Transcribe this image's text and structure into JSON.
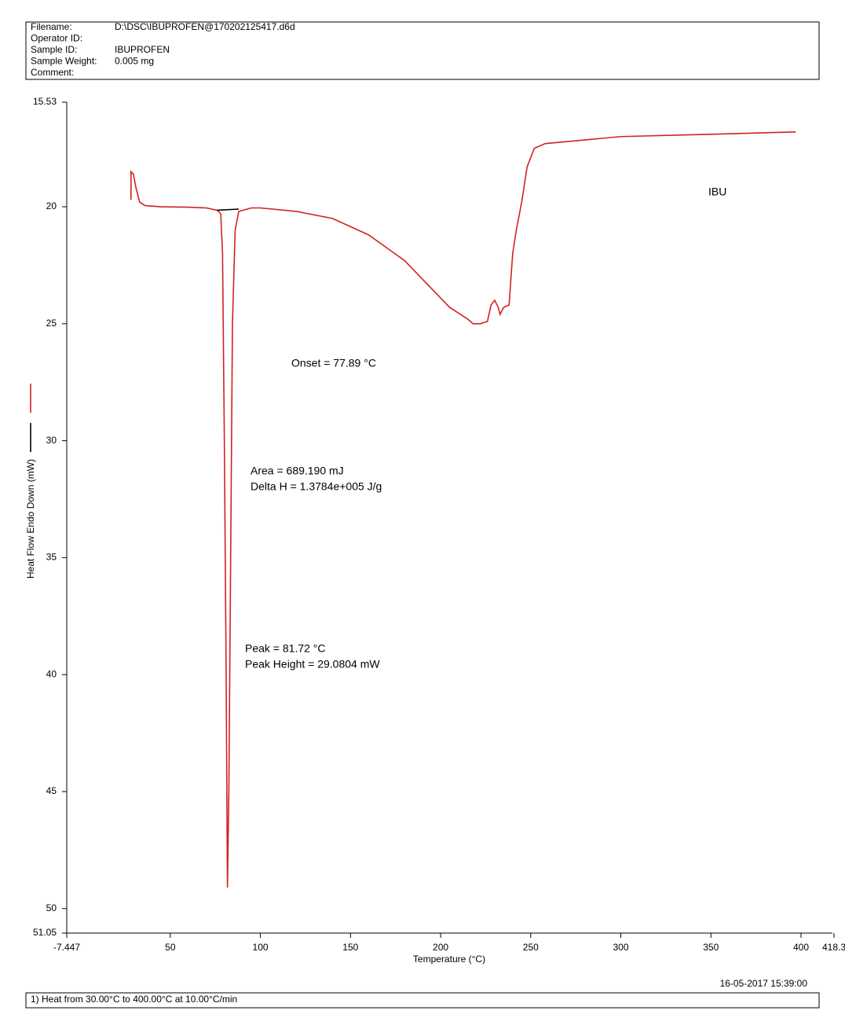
{
  "header": {
    "rows": [
      [
        "Filename:",
        "D:\\DSC\\IBUPROFEN@170202125417.d6d"
      ],
      [
        "Operator ID:",
        ""
      ],
      [
        "Sample ID:",
        "IBUPROFEN"
      ],
      [
        "Sample Weight:",
        "0.005 mg"
      ],
      [
        "Comment:",
        ""
      ]
    ]
  },
  "footer": {
    "timestamp": "16-05-2017 15:39:00",
    "method": "1)  Heat from 30.00°C to 400.00°C at 10.00°C/min"
  },
  "chart_data": {
    "type": "line",
    "x_label": "Temperature (°C)",
    "y_label": "Heat Flow Endo Down (mW)",
    "xlim": [
      -7.447,
      418.3
    ],
    "xticks": [
      -7.447,
      50,
      100,
      150,
      200,
      250,
      300,
      350,
      400,
      418.3
    ],
    "ylim": [
      51.05,
      15.53
    ],
    "yticks": [
      15.53,
      20,
      25,
      30,
      35,
      40,
      45,
      50,
      51.05
    ],
    "annotations": [
      "IBU",
      "Onset = 77.89 °C",
      "Area = 689.190 mJ",
      "Delta H = 1.3784e+005 J/g",
      "Peak = 81.72 °C",
      "Peak Height = 29.0804 mW"
    ],
    "series": [
      {
        "color": "#d42020",
        "x": [
          28.2,
          28.2,
          29.5,
          31,
          33,
          36,
          45,
          60,
          70,
          76,
          78,
          79,
          80,
          81,
          81.72,
          82.5,
          83.5,
          84.5,
          86,
          88,
          95,
          100,
          120,
          140,
          160,
          180,
          195,
          205,
          215,
          218,
          222,
          226,
          228,
          230,
          232,
          233,
          235,
          238,
          240,
          242,
          245,
          248,
          252,
          258,
          300,
          350,
          397
        ],
        "values": [
          19.7,
          18.5,
          18.6,
          19.2,
          19.8,
          19.95,
          20.0,
          20.02,
          20.05,
          20.15,
          20.3,
          22,
          30,
          40,
          49.1,
          45,
          35,
          25,
          21,
          20.2,
          20.05,
          20.05,
          20.2,
          20.5,
          21.2,
          22.3,
          23.5,
          24.3,
          24.8,
          25.0,
          25.0,
          24.9,
          24.2,
          24.0,
          24.3,
          24.6,
          24.3,
          24.2,
          22.0,
          21.0,
          19.8,
          18.3,
          17.5,
          17.3,
          17.0,
          16.9,
          16.8
        ]
      },
      {
        "color": "#000000",
        "x": [
          76,
          88
        ],
        "values": [
          20.15,
          20.1
        ]
      }
    ]
  }
}
